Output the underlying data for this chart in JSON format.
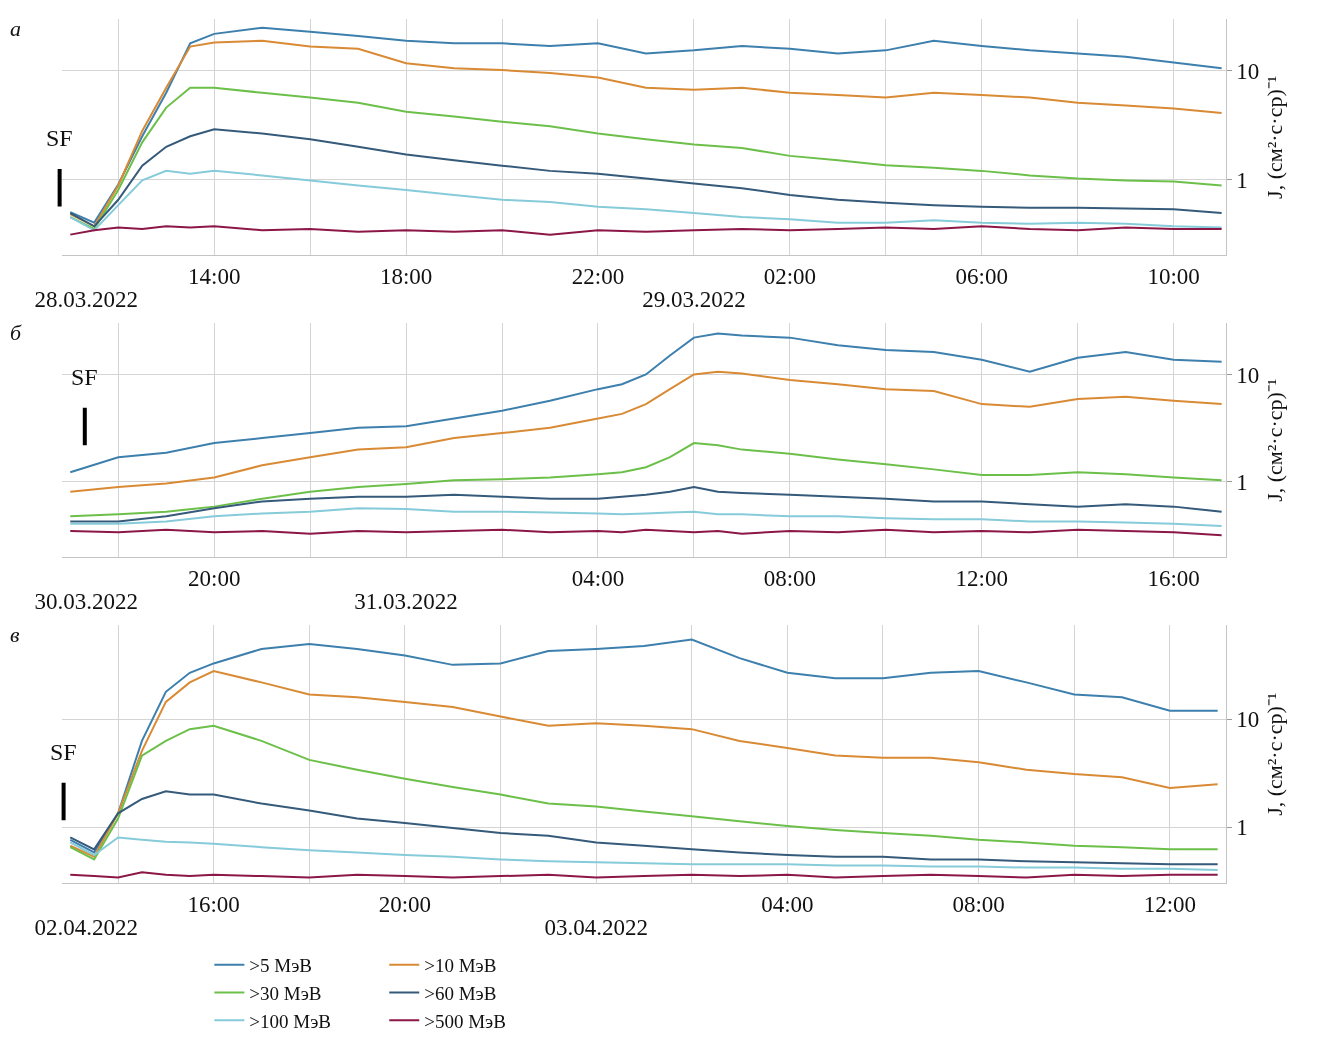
{
  "chart_data": [
    {
      "type": "line",
      "title": "а",
      "ylabel": "J, (см²·с·ср)⁻¹",
      "log": "y",
      "grid": true,
      "xlim": [
        "--03-28T10:50",
        "--03-29T11:05"
      ],
      "xticks": [
        {
          "value": "--03-28T12:00",
          "label": null
        },
        {
          "value": "--03-28T14:00",
          "label": "14:00"
        },
        {
          "value": "--03-28T16:00",
          "label": null
        },
        {
          "value": "--03-28T18:00",
          "label": "18:00"
        },
        {
          "value": "--03-28T20:00",
          "label": null
        },
        {
          "value": "--03-28T22:00",
          "label": "22:00"
        },
        {
          "value": "--03-29T00:00",
          "label": null
        },
        {
          "value": "--03-29T02:00",
          "label": "02:00"
        },
        {
          "value": "--03-29T04:00",
          "label": null
        },
        {
          "value": "--03-29T06:00",
          "label": "06:00"
        },
        {
          "value": "--03-29T08:00",
          "label": null
        },
        {
          "value": "--03-29T10:00",
          "label": "10:00"
        }
      ],
      "x2lim": [
        "2022-03-28T10:50",
        "2022-03-29T11:05"
      ],
      "x2ticks": [
        {
          "value": "2022-03-28T11:20",
          "label": "28.03.2022"
        },
        {
          "value": "2022-03-29",
          "label": "29.03.2022"
        }
      ],
      "ylim": [
        0.2,
        30
      ],
      "yticks": [
        1,
        10
      ],
      "annotations": [
        "SF"
      ],
      "x": [
        "--03-28T11:00",
        "--03-28T11:30",
        "--03-28T12:00",
        "--03-28T12:30",
        "--03-28T13:00",
        "--03-28T13:30",
        "--03-28T14:00",
        "--03-28T15:00",
        "--03-28T16:00",
        "--03-28T17:00",
        "--03-28T18:00",
        "--03-28T19:00",
        "--03-28T20:00",
        "--03-28T21:00",
        "--03-28T22:00",
        "--03-28T23:00",
        "--03-29T00:00",
        "--03-29T01:00",
        "--03-29T02:00",
        "--03-29T03:00",
        "--03-29T04:00",
        "--03-29T05:00",
        "--03-29T06:00",
        "--03-29T07:00",
        "--03-29T08:00",
        "--03-29T09:00",
        "--03-29T10:00",
        "--03-29T11:00"
      ],
      "series": [
        {
          "color": "#3d7fad",
          "values": [
            0.5,
            0.4,
            0.9,
            2.5,
            6.3,
            18,
            22,
            25,
            23,
            21,
            19,
            18,
            18,
            17,
            18,
            14.5,
            15.5,
            17,
            16,
            14.5,
            15.5,
            19,
            17,
            15.5,
            14.5,
            13.5,
            12,
            10.6
          ]
        },
        {
          "color": "#d98a35",
          "values": [
            0.48,
            0.37,
            0.88,
            2.8,
            7,
            16.8,
            18.3,
            19,
            16.8,
            16,
            11.8,
            10.6,
            10.2,
            9.6,
            8.7,
            7,
            6.7,
            7,
            6.3,
            6,
            5.7,
            6.3,
            6,
            5.7,
            5.1,
            4.8,
            4.5,
            4.1
          ]
        },
        {
          "color": "#6cc04a",
          "values": [
            0.45,
            0.35,
            0.8,
            2.2,
            4.6,
            7,
            7,
            6.3,
            5.7,
            5.1,
            4.2,
            3.8,
            3.4,
            3.1,
            2.65,
            2.35,
            2.1,
            1.95,
            1.65,
            1.5,
            1.35,
            1.28,
            1.2,
            1.09,
            1.02,
            0.98,
            0.96,
            0.88
          ]
        },
        {
          "color": "#355a7a",
          "values": [
            0.49,
            0.37,
            0.65,
            1.34,
            2,
            2.5,
            2.9,
            2.65,
            2.35,
            2,
            1.7,
            1.5,
            1.34,
            1.2,
            1.13,
            1.02,
            0.92,
            0.83,
            0.72,
            0.65,
            0.61,
            0.58,
            0.56,
            0.55,
            0.55,
            0.54,
            0.53,
            0.49
          ]
        },
        {
          "color": "#86cbd9",
          "values": [
            0.45,
            0.34,
            0.58,
            0.98,
            1.2,
            1.13,
            1.2,
            1.09,
            0.98,
            0.88,
            0.8,
            0.72,
            0.65,
            0.62,
            0.56,
            0.53,
            0.49,
            0.45,
            0.43,
            0.4,
            0.4,
            0.42,
            0.4,
            0.39,
            0.4,
            0.39,
            0.37,
            0.36
          ]
        },
        {
          "color": "#8c1746",
          "values": [
            0.31,
            0.34,
            0.36,
            0.35,
            0.37,
            0.36,
            0.37,
            0.34,
            0.35,
            0.33,
            0.34,
            0.33,
            0.34,
            0.31,
            0.34,
            0.33,
            0.34,
            0.35,
            0.34,
            0.35,
            0.36,
            0.35,
            0.37,
            0.35,
            0.34,
            0.36,
            0.35,
            0.35
          ]
        }
      ]
    },
    {
      "type": "line",
      "title": "б",
      "ylabel": "J, (см²·с·ср)⁻¹",
      "log": "y",
      "grid": true,
      "xlim": [
        "--03-30T16:50",
        "--03-31T17:05"
      ],
      "xticks": [
        {
          "value": "--03-30T18:00",
          "label": null
        },
        {
          "value": "--03-30T20:00",
          "label": "20:00"
        },
        {
          "value": "--03-30T22:00",
          "label": null
        },
        {
          "value": "--03-31T00:00",
          "label": null
        },
        {
          "value": "--03-31T02:00",
          "label": null
        },
        {
          "value": "--03-31T04:00",
          "label": "04:00"
        },
        {
          "value": "--03-31T06:00",
          "label": null
        },
        {
          "value": "--03-31T08:00",
          "label": "08:00"
        },
        {
          "value": "--03-31T10:00",
          "label": null
        },
        {
          "value": "--03-31T12:00",
          "label": "12:00"
        },
        {
          "value": "--03-31T14:00",
          "label": null
        },
        {
          "value": "--03-31T16:00",
          "label": "16:00"
        }
      ],
      "x2lim": [
        "2022-03-30T16:50",
        "2022-03-31T17:05"
      ],
      "x2ticks": [
        {
          "value": "2022-03-30T17:20",
          "label": "30.03.2022"
        },
        {
          "value": "2022-03-31",
          "label": "31.03.2022"
        }
      ],
      "ylim": [
        0.2,
        30
      ],
      "yticks": [
        1,
        10
      ],
      "annotations": [
        "SF"
      ],
      "x": [
        "--03-30T17:00",
        "--03-30T18:00",
        "--03-30T19:00",
        "--03-30T20:00",
        "--03-30T21:00",
        "--03-30T22:00",
        "--03-30T23:00",
        "--03-31T00:00",
        "--03-31T01:00",
        "--03-31T02:00",
        "--03-31T03:00",
        "--03-31T04:00",
        "--03-31T04:30",
        "--03-31T05:00",
        "--03-31T05:30",
        "--03-31T06:00",
        "--03-31T06:30",
        "--03-31T07:00",
        "--03-31T08:00",
        "--03-31T09:00",
        "--03-31T10:00",
        "--03-31T11:00",
        "--03-31T12:00",
        "--03-31T13:00",
        "--03-31T14:00",
        "--03-31T15:00",
        "--03-31T16:00",
        "--03-31T17:00"
      ],
      "series": [
        {
          "color": "#3d7fad",
          "values": [
            1.23,
            1.7,
            1.87,
            2.3,
            2.56,
            2.85,
            3.2,
            3.3,
            3.9,
            4.6,
            5.7,
            7.3,
            8.1,
            10,
            15,
            22,
            24,
            23,
            22,
            18.7,
            16.9,
            16.2,
            13.7,
            10.6,
            14.3,
            16.2,
            13.7,
            13.1
          ]
        },
        {
          "color": "#d98a35",
          "values": [
            0.81,
            0.9,
            0.97,
            1.1,
            1.43,
            1.7,
            2,
            2.1,
            2.56,
            2.85,
            3.2,
            3.9,
            4.3,
            5.3,
            7.3,
            10,
            10.6,
            10.2,
            8.9,
            8.1,
            7.3,
            7,
            5.3,
            5,
            5.9,
            6.2,
            5.7,
            5.3
          ]
        },
        {
          "color": "#6cc04a",
          "values": [
            0.48,
            0.5,
            0.53,
            0.59,
            0.7,
            0.81,
            0.9,
            0.96,
            1.04,
            1.06,
            1.1,
            1.18,
            1.23,
            1.37,
            1.7,
            2.3,
            2.2,
            2,
            1.83,
            1.62,
            1.46,
            1.31,
            1.16,
            1.16,
            1.23,
            1.18,
            1.1,
            1.04
          ]
        },
        {
          "color": "#355a7a",
          "values": [
            0.43,
            0.43,
            0.48,
            0.57,
            0.66,
            0.7,
            0.73,
            0.73,
            0.76,
            0.73,
            0.7,
            0.7,
            0.73,
            0.76,
            0.81,
            0.9,
            0.81,
            0.79,
            0.76,
            0.73,
            0.7,
            0.66,
            0.66,
            0.62,
            0.59,
            0.62,
            0.59,
            0.53
          ]
        },
        {
          "color": "#86cbd9",
          "values": [
            0.41,
            0.41,
            0.43,
            0.48,
            0.51,
            0.53,
            0.57,
            0.56,
            0.53,
            0.53,
            0.52,
            0.51,
            0.5,
            0.51,
            0.52,
            0.53,
            0.5,
            0.5,
            0.48,
            0.48,
            0.46,
            0.45,
            0.45,
            0.43,
            0.43,
            0.42,
            0.41,
            0.39
          ]
        },
        {
          "color": "#8c1746",
          "values": [
            0.35,
            0.34,
            0.36,
            0.34,
            0.35,
            0.33,
            0.35,
            0.34,
            0.35,
            0.36,
            0.34,
            0.35,
            0.34,
            0.36,
            0.35,
            0.34,
            0.35,
            0.33,
            0.35,
            0.34,
            0.36,
            0.34,
            0.35,
            0.34,
            0.36,
            0.35,
            0.34,
            0.32
          ]
        }
      ]
    },
    {
      "type": "line",
      "title": "в",
      "ylabel": "J, (см²·с·ср)⁻¹",
      "log": "y",
      "grid": true,
      "legend": "bottom",
      "xlim": [
        "--04-02T12:50",
        "--04-03T13:10"
      ],
      "xticks": [
        {
          "value": "--04-02T14:00",
          "label": null
        },
        {
          "value": "--04-02T16:00",
          "label": "16:00"
        },
        {
          "value": "--04-02T18:00",
          "label": null
        },
        {
          "value": "--04-02T20:00",
          "label": "20:00"
        },
        {
          "value": "--04-02T22:00",
          "label": null
        },
        {
          "value": "--04-03T00:00",
          "label": null
        },
        {
          "value": "--04-03T02:00",
          "label": null
        },
        {
          "value": "--04-03T04:00",
          "label": "04:00"
        },
        {
          "value": "--04-03T06:00",
          "label": null
        },
        {
          "value": "--04-03T08:00",
          "label": "08:00"
        },
        {
          "value": "--04-03T10:00",
          "label": null
        },
        {
          "value": "--04-03T12:00",
          "label": "12:00"
        }
      ],
      "x2lim": [
        "2022-04-02T12:50",
        "2022-04-03T13:10"
      ],
      "x2ticks": [
        {
          "value": "2022-04-02T13:20",
          "label": "02.04.2022"
        },
        {
          "value": "2022-04-03",
          "label": "03.04.2022"
        }
      ],
      "ylim": [
        0.3,
        75
      ],
      "yticks": [
        1,
        10
      ],
      "annotations": [
        "SF"
      ],
      "x": [
        "--04-02T13:00",
        "--04-02T13:30",
        "--04-02T14:00",
        "--04-02T14:30",
        "--04-02T15:00",
        "--04-02T15:30",
        "--04-02T16:00",
        "--04-02T17:00",
        "--04-02T18:00",
        "--04-02T19:00",
        "--04-02T20:00",
        "--04-02T21:00",
        "--04-02T22:00",
        "--04-02T23:00",
        "--04-03T00:00",
        "--04-03T01:00",
        "--04-03T02:00",
        "--04-03T03:00",
        "--04-03T04:00",
        "--04-03T05:00",
        "--04-03T06:00",
        "--04-03T07:00",
        "--04-03T08:00",
        "--04-03T09:00",
        "--04-03T10:00",
        "--04-03T11:00",
        "--04-03T12:00",
        "--04-03T13:00"
      ],
      "series": [
        {
          "name": ">5 МэВ",
          "color": "#3d7fad",
          "values": [
            0.76,
            0.58,
            1.34,
            6.3,
            18,
            27,
            33,
            45,
            50,
            45,
            39,
            32,
            33,
            43,
            45,
            48,
            55,
            37,
            27,
            24,
            24,
            27,
            28,
            22,
            17,
            16,
            12,
            12
          ]
        },
        {
          "name": ">10 МэВ",
          "color": "#d98a35",
          "values": [
            0.67,
            0.53,
            1.34,
            5.1,
            14.5,
            22,
            28,
            22,
            17,
            16,
            14.5,
            13,
            10.6,
            8.7,
            9.2,
            8.7,
            8.1,
            6.3,
            5.4,
            4.6,
            4.4,
            4.4,
            4,
            3.4,
            3.1,
            2.9,
            2.3,
            2.5
          ]
        },
        {
          "name": ">30 МэВ",
          "color": "#6cc04a",
          "values": [
            0.65,
            0.5,
            1.2,
            4.6,
            6.3,
            8.1,
            8.7,
            6.3,
            4.2,
            3.4,
            2.8,
            2.35,
            2,
            1.65,
            1.55,
            1.39,
            1.26,
            1.13,
            1.02,
            0.94,
            0.88,
            0.83,
            0.76,
            0.72,
            0.67,
            0.65,
            0.62,
            0.62
          ]
        },
        {
          "name": ">60 МэВ",
          "color": "#355a7a",
          "values": [
            0.8,
            0.62,
            1.34,
            1.82,
            2.15,
            2,
            2,
            1.65,
            1.42,
            1.2,
            1.09,
            0.98,
            0.88,
            0.83,
            0.72,
            0.67,
            0.62,
            0.58,
            0.55,
            0.53,
            0.53,
            0.5,
            0.5,
            0.48,
            0.47,
            0.46,
            0.45,
            0.45
          ]
        },
        {
          "name": ">100 МэВ",
          "color": "#86cbd9",
          "values": [
            0.72,
            0.55,
            0.8,
            0.76,
            0.73,
            0.72,
            0.7,
            0.65,
            0.61,
            0.58,
            0.55,
            0.53,
            0.5,
            0.48,
            0.47,
            0.46,
            0.45,
            0.45,
            0.45,
            0.44,
            0.44,
            0.43,
            0.43,
            0.42,
            0.42,
            0.41,
            0.41,
            0.4
          ]
        },
        {
          "name": ">500 МэВ",
          "color": "#8c1746",
          "values": [
            0.36,
            0.35,
            0.34,
            0.38,
            0.36,
            0.35,
            0.36,
            0.35,
            0.34,
            0.36,
            0.35,
            0.34,
            0.35,
            0.36,
            0.34,
            0.35,
            0.36,
            0.35,
            0.36,
            0.34,
            0.35,
            0.36,
            0.35,
            0.34,
            0.36,
            0.35,
            0.36,
            0.36
          ]
        }
      ]
    }
  ]
}
